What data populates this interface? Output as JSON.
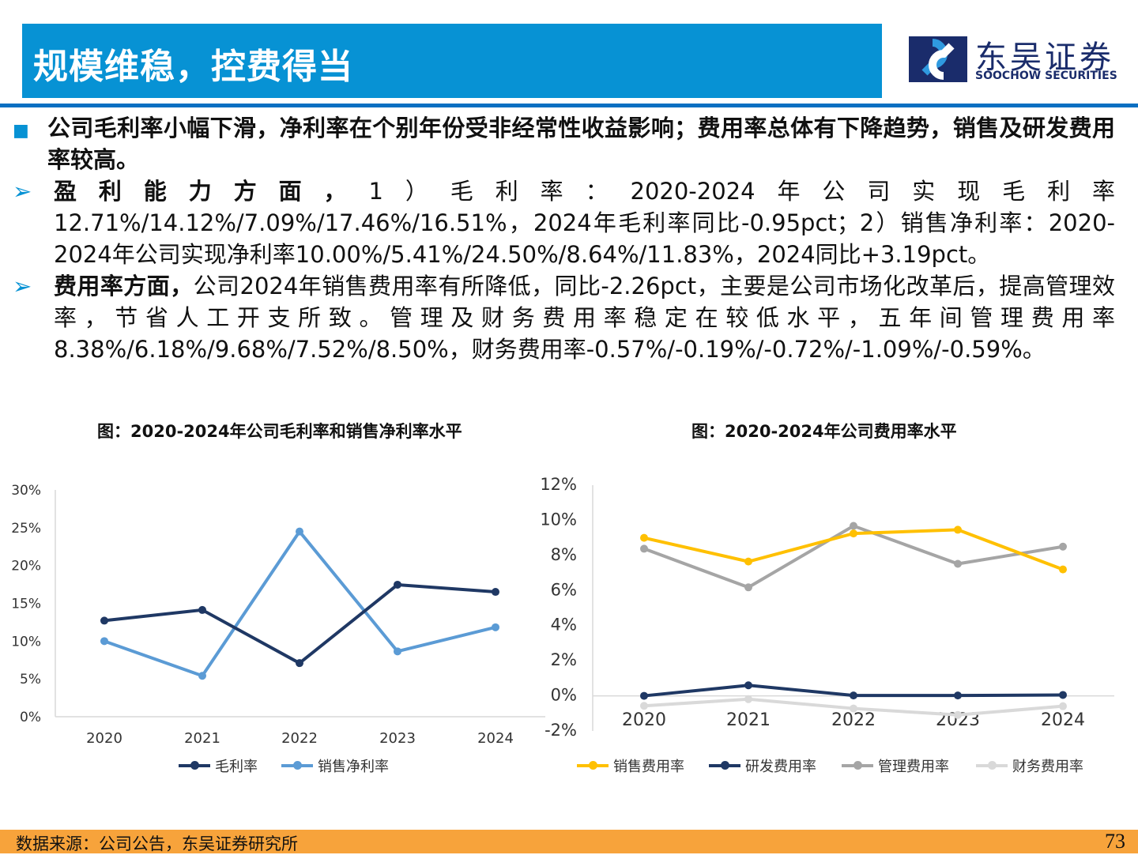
{
  "header": {
    "title": "规模维稳，控费得当",
    "logo_cn": "东吴证券",
    "logo_en": "SOOCHOW SECURITIES"
  },
  "paragraphs": [
    {
      "bullet": "■",
      "bold": "公司毛利率小幅下滑，净利率在个别年份受非经常性收益影响；费用率总体有下降趋势，销售及研发费用率较高。",
      "text": ""
    },
    {
      "bullet": "➢",
      "bold": "盈利能力方面，",
      "text": "1）毛利率：2020-2024年公司实现毛利率12.71%/14.12%/7.09%/17.46%/16.51%，2024年毛利率同比-0.95pct；2）销售净利率：2020-2024年公司实现净利率10.00%/5.41%/24.50%/8.64%/11.83%，2024同比+3.19pct。"
    },
    {
      "bullet": "➢",
      "bold": "费用率方面，",
      "text": "公司2024年销售费用率有所降低，同比-2.26pct，主要是公司市场化改革后，提高管理效率，节省人工开支所致。管理及财务费用率稳定在较低水平，五年间管理费用率8.38%/6.18%/9.68%/7.52%/8.50%，财务费用率-0.57%/-0.19%/-0.72%/-1.09%/-0.59%。"
    }
  ],
  "chart_data": [
    {
      "type": "line",
      "title": "图：2020-2024年公司毛利率和销售净利率水平",
      "categories": [
        "2020",
        "2021",
        "2022",
        "2023",
        "2024"
      ],
      "ylim": [
        0,
        30
      ],
      "yticks": [
        "0%",
        "5%",
        "10%",
        "15%",
        "20%",
        "25%",
        "30%"
      ],
      "ytick_values": [
        0,
        5,
        10,
        15,
        20,
        25,
        30
      ],
      "legend": "bottom",
      "grid": false,
      "series": [
        {
          "name": "毛利率",
          "color": "#1f3864",
          "values": [
            12.71,
            14.12,
            7.09,
            17.46,
            16.51
          ]
        },
        {
          "name": "销售净利率",
          "color": "#5b9bd5",
          "values": [
            10.0,
            5.41,
            24.5,
            8.64,
            11.83
          ]
        }
      ]
    },
    {
      "type": "line",
      "title": "图：2020-2024年公司费用率水平",
      "categories": [
        "2020",
        "2021",
        "2022",
        "2023",
        "2024"
      ],
      "ylim": [
        -2,
        12
      ],
      "yticks": [
        "-2%",
        "0%",
        "2%",
        "4%",
        "6%",
        "8%",
        "10%",
        "12%"
      ],
      "ytick_values": [
        -2,
        0,
        2,
        4,
        6,
        8,
        10,
        12
      ],
      "legend": "bottom",
      "grid": false,
      "series": [
        {
          "name": "销售费用率",
          "color": "#ffc000",
          "values": [
            9.0,
            7.65,
            9.25,
            9.46,
            7.2
          ]
        },
        {
          "name": "研发费用率",
          "color": "#1f3864",
          "values": [
            0.0,
            0.6,
            0.02,
            0.02,
            0.05
          ]
        },
        {
          "name": "管理费用率",
          "color": "#a5a5a5",
          "values": [
            8.38,
            6.18,
            9.68,
            7.52,
            8.5
          ]
        },
        {
          "name": "财务费用率",
          "color": "#d9d9d9",
          "values": [
            -0.57,
            -0.19,
            -0.72,
            -1.09,
            -0.59
          ]
        }
      ]
    }
  ],
  "footer": {
    "source": "数据来源：公司公告，东吴证券研究所",
    "page": "73"
  }
}
